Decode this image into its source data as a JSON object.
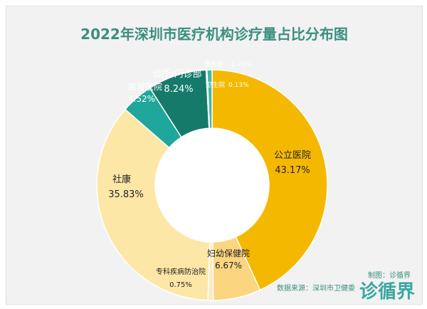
{
  "chart_data": {
    "type": "pie",
    "donut": true,
    "title": "2022年深圳市医疗机构诊疗量占比分布图",
    "slices": [
      {
        "name": "公立医院",
        "value": 43.17,
        "label": "43.17%",
        "color": "#f5b800"
      },
      {
        "name": "妇幼保健院",
        "value": 6.67,
        "label": "6.67%",
        "color": "#fbd580"
      },
      {
        "name": "专科疾病防治院",
        "value": 0.75,
        "label": "0.75%",
        "color": "#fdebc0"
      },
      {
        "name": "社康",
        "value": 35.83,
        "label": "35.83%",
        "color": "#fde7a6"
      },
      {
        "name": "民营医院",
        "value": 4.52,
        "label": "4.52%",
        "color": "#1ea79a"
      },
      {
        "name": "诊所/门诊部",
        "value": 8.24,
        "label": "8.24%",
        "color": "#157a69"
      },
      {
        "name": "卫生院",
        "value": 0.13,
        "label": "0.13%",
        "color": "#6ed3c2"
      },
      {
        "name": "医务室",
        "value": 0.7,
        "label": "0.70%",
        "color": "#45b5a5"
      }
    ],
    "labels": {
      "public_hospital": {
        "name": "公立医院",
        "value": "43.17%"
      },
      "maternal": {
        "name": "妇幼保健院",
        "value": "6.67%"
      },
      "specialty": {
        "name": "专科疾病防治院",
        "value": "0.75%"
      },
      "community": {
        "name": "社康",
        "value": "35.83%"
      },
      "private_hospital": {
        "name": "民营医院",
        "value": "4.52%"
      },
      "clinic": {
        "name": "诊所/门诊部",
        "value": "8.24%"
      },
      "health_center": {
        "name": "卫生院",
        "value": "0.13%"
      },
      "infirmary": {
        "name": "医务室",
        "value": "0.70%"
      }
    }
  },
  "footer": {
    "producer": "制图：诊循界",
    "source": "数据来源：深圳市卫健委",
    "logo": "诊循界"
  },
  "colors": {
    "title": "#3a8f7f",
    "background": "#f2f2f2"
  }
}
